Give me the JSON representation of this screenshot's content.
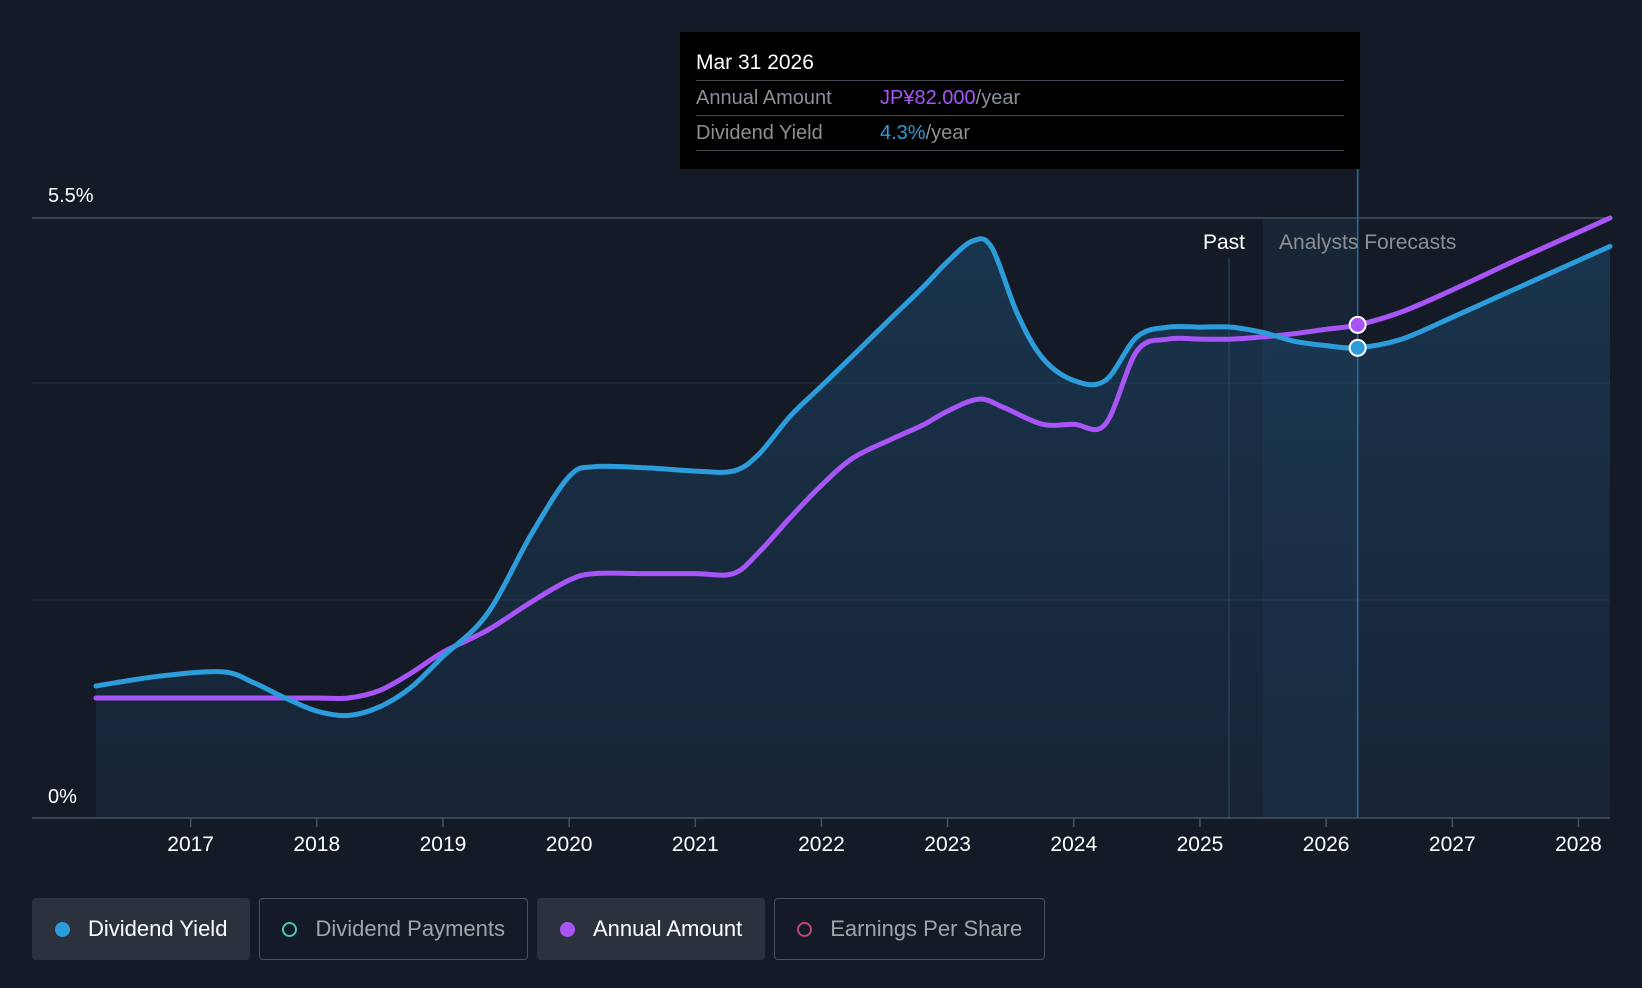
{
  "tooltip": {
    "date": "Mar 31 2026",
    "rows": [
      {
        "label": "Annual Amount",
        "value": "JP¥82.000",
        "unit": "/year"
      },
      {
        "label": "Dividend Yield",
        "value": "4.3%",
        "unit": "/year"
      }
    ]
  },
  "legend": [
    {
      "label": "Dividend Yield",
      "state": "active",
      "color": "#2d9cdb"
    },
    {
      "label": "Dividend Payments",
      "state": "inactive",
      "color": "#4fc3b8"
    },
    {
      "label": "Annual Amount",
      "state": "active",
      "color": "#a855f7"
    },
    {
      "label": "Earnings Per Share",
      "state": "inactive",
      "color": "#c0457a"
    }
  ],
  "chart_data": {
    "type": "line",
    "ylim": [
      0,
      5.5
    ],
    "y_tick_labels": [
      "0%",
      "5.5%"
    ],
    "xlim": [
      2016.25,
      2028.25
    ],
    "x_tick_labels": [
      "2017",
      "2018",
      "2019",
      "2020",
      "2021",
      "2022",
      "2023",
      "2024",
      "2025",
      "2026",
      "2027",
      "2028"
    ],
    "past_label": "Past",
    "forecast_label": "Analysts Forecasts",
    "past_end_x": 2025.5,
    "hover_x": 2026.25,
    "grid": true,
    "colors": {
      "dividend_yield": "#2d9cdb",
      "annual_amount": "#a855f7",
      "background": "#151b26"
    },
    "series": [
      {
        "name": "Dividend Yield",
        "key": "dividend_yield",
        "points": [
          [
            2016.25,
            1.21
          ],
          [
            2016.75,
            1.3
          ],
          [
            2017.25,
            1.34
          ],
          [
            2017.5,
            1.24
          ],
          [
            2017.75,
            1.1
          ],
          [
            2018.0,
            0.98
          ],
          [
            2018.25,
            0.94
          ],
          [
            2018.5,
            1.02
          ],
          [
            2018.75,
            1.2
          ],
          [
            2019.0,
            1.48
          ],
          [
            2019.35,
            1.87
          ],
          [
            2019.7,
            2.6
          ],
          [
            2020.0,
            3.13
          ],
          [
            2020.2,
            3.22
          ],
          [
            2020.6,
            3.21
          ],
          [
            2021.0,
            3.18
          ],
          [
            2021.3,
            3.18
          ],
          [
            2021.5,
            3.33
          ],
          [
            2021.75,
            3.68
          ],
          [
            2022.0,
            3.96
          ],
          [
            2022.25,
            4.24
          ],
          [
            2022.55,
            4.58
          ],
          [
            2022.8,
            4.86
          ],
          [
            2023.0,
            5.1
          ],
          [
            2023.2,
            5.29
          ],
          [
            2023.35,
            5.23
          ],
          [
            2023.55,
            4.63
          ],
          [
            2023.75,
            4.22
          ],
          [
            2024.0,
            4.01
          ],
          [
            2024.25,
            4.01
          ],
          [
            2024.5,
            4.41
          ],
          [
            2024.75,
            4.5
          ],
          [
            2025.0,
            4.5
          ],
          [
            2025.25,
            4.5
          ],
          [
            2025.5,
            4.45
          ],
          [
            2025.75,
            4.37
          ],
          [
            2026.0,
            4.33
          ],
          [
            2026.25,
            4.31
          ],
          [
            2026.6,
            4.39
          ],
          [
            2027.0,
            4.59
          ],
          [
            2027.5,
            4.85
          ],
          [
            2028.0,
            5.11
          ],
          [
            2028.25,
            5.24
          ]
        ]
      },
      {
        "name": "Annual Amount",
        "key": "annual_amount",
        "points": [
          [
            2016.25,
            1.1
          ],
          [
            2016.75,
            1.1
          ],
          [
            2017.25,
            1.1
          ],
          [
            2017.75,
            1.1
          ],
          [
            2018.0,
            1.1
          ],
          [
            2018.25,
            1.1
          ],
          [
            2018.5,
            1.17
          ],
          [
            2018.75,
            1.33
          ],
          [
            2019.0,
            1.52
          ],
          [
            2019.35,
            1.72
          ],
          [
            2019.7,
            1.98
          ],
          [
            2020.0,
            2.18
          ],
          [
            2020.2,
            2.24
          ],
          [
            2020.6,
            2.24
          ],
          [
            2021.0,
            2.24
          ],
          [
            2021.3,
            2.24
          ],
          [
            2021.5,
            2.43
          ],
          [
            2021.75,
            2.75
          ],
          [
            2022.0,
            3.05
          ],
          [
            2022.25,
            3.3
          ],
          [
            2022.55,
            3.47
          ],
          [
            2022.8,
            3.6
          ],
          [
            2023.0,
            3.73
          ],
          [
            2023.25,
            3.84
          ],
          [
            2023.45,
            3.76
          ],
          [
            2023.75,
            3.61
          ],
          [
            2024.0,
            3.61
          ],
          [
            2024.25,
            3.61
          ],
          [
            2024.5,
            4.28
          ],
          [
            2024.75,
            4.39
          ],
          [
            2025.0,
            4.39
          ],
          [
            2025.25,
            4.39
          ],
          [
            2025.5,
            4.41
          ],
          [
            2025.75,
            4.44
          ],
          [
            2026.0,
            4.48
          ],
          [
            2026.25,
            4.52
          ],
          [
            2026.6,
            4.64
          ],
          [
            2027.0,
            4.84
          ],
          [
            2027.5,
            5.11
          ],
          [
            2028.0,
            5.37
          ],
          [
            2028.25,
            5.5
          ]
        ]
      }
    ],
    "hover_values": {
      "dividend_yield": 4.31,
      "annual_amount": 4.52
    }
  }
}
